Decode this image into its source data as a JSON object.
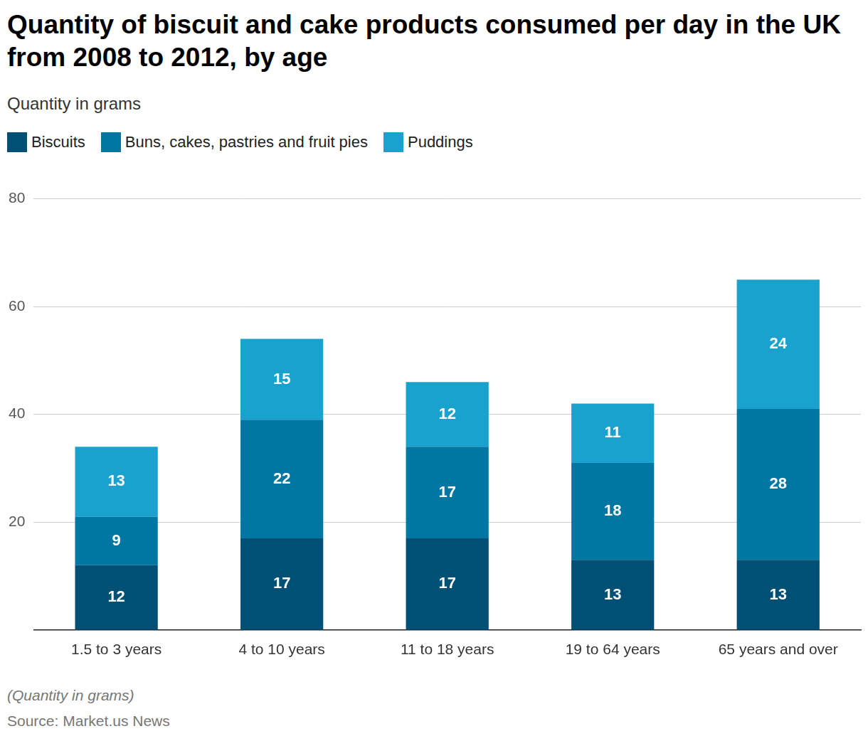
{
  "chart_data": {
    "type": "bar",
    "title": "Quantity of biscuit and cake products consumed per day in the UK from 2008 to 2012, by age",
    "subtitle": "Quantity in grams",
    "annotations": [
      "(Quantity in grams)",
      "Source: Market.us News"
    ],
    "categories": [
      "1.5 to 3 years",
      "4 to 10 years",
      "11 to 18 years",
      "19 to 64 years",
      "65 years and over"
    ],
    "series": [
      {
        "name": "Biscuits",
        "color": "#004f74",
        "values": [
          12,
          17,
          17,
          13,
          13
        ]
      },
      {
        "name": "Buns, cakes, pastries and fruit pies",
        "color": "#0077a3",
        "values": [
          9,
          22,
          17,
          18,
          28
        ]
      },
      {
        "name": "Puddings",
        "color": "#19a2cd",
        "values": [
          13,
          15,
          12,
          11,
          24
        ]
      }
    ],
    "ylim": [
      0,
      80
    ],
    "yticks": [
      20,
      40,
      60,
      80
    ],
    "grid": true,
    "stacked": true,
    "data_labels": true,
    "legend": "top-left"
  }
}
